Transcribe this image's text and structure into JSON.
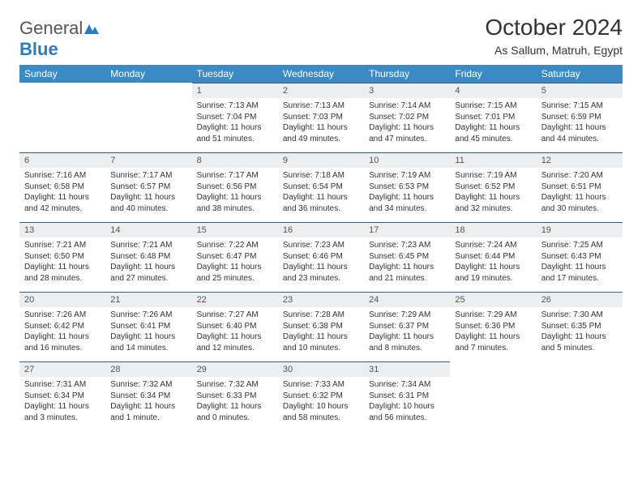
{
  "logo": {
    "part1": "General",
    "part2": "Blue"
  },
  "title": "October 2024",
  "location": "As Sallum, Matruh, Egypt",
  "dayHeaders": [
    "Sunday",
    "Monday",
    "Tuesday",
    "Wednesday",
    "Thursday",
    "Friday",
    "Saturday"
  ],
  "colors": {
    "headerBg": "#3b8ac4",
    "daynumBg": "#eceef0",
    "rule": "#3b5a78"
  },
  "weeks": [
    [
      null,
      null,
      {
        "n": "1",
        "sr": "7:13 AM",
        "ss": "7:04 PM",
        "dl": "11 hours and 51 minutes."
      },
      {
        "n": "2",
        "sr": "7:13 AM",
        "ss": "7:03 PM",
        "dl": "11 hours and 49 minutes."
      },
      {
        "n": "3",
        "sr": "7:14 AM",
        "ss": "7:02 PM",
        "dl": "11 hours and 47 minutes."
      },
      {
        "n": "4",
        "sr": "7:15 AM",
        "ss": "7:01 PM",
        "dl": "11 hours and 45 minutes."
      },
      {
        "n": "5",
        "sr": "7:15 AM",
        "ss": "6:59 PM",
        "dl": "11 hours and 44 minutes."
      }
    ],
    [
      {
        "n": "6",
        "sr": "7:16 AM",
        "ss": "6:58 PM",
        "dl": "11 hours and 42 minutes."
      },
      {
        "n": "7",
        "sr": "7:17 AM",
        "ss": "6:57 PM",
        "dl": "11 hours and 40 minutes."
      },
      {
        "n": "8",
        "sr": "7:17 AM",
        "ss": "6:56 PM",
        "dl": "11 hours and 38 minutes."
      },
      {
        "n": "9",
        "sr": "7:18 AM",
        "ss": "6:54 PM",
        "dl": "11 hours and 36 minutes."
      },
      {
        "n": "10",
        "sr": "7:19 AM",
        "ss": "6:53 PM",
        "dl": "11 hours and 34 minutes."
      },
      {
        "n": "11",
        "sr": "7:19 AM",
        "ss": "6:52 PM",
        "dl": "11 hours and 32 minutes."
      },
      {
        "n": "12",
        "sr": "7:20 AM",
        "ss": "6:51 PM",
        "dl": "11 hours and 30 minutes."
      }
    ],
    [
      {
        "n": "13",
        "sr": "7:21 AM",
        "ss": "6:50 PM",
        "dl": "11 hours and 28 minutes."
      },
      {
        "n": "14",
        "sr": "7:21 AM",
        "ss": "6:48 PM",
        "dl": "11 hours and 27 minutes."
      },
      {
        "n": "15",
        "sr": "7:22 AM",
        "ss": "6:47 PM",
        "dl": "11 hours and 25 minutes."
      },
      {
        "n": "16",
        "sr": "7:23 AM",
        "ss": "6:46 PM",
        "dl": "11 hours and 23 minutes."
      },
      {
        "n": "17",
        "sr": "7:23 AM",
        "ss": "6:45 PM",
        "dl": "11 hours and 21 minutes."
      },
      {
        "n": "18",
        "sr": "7:24 AM",
        "ss": "6:44 PM",
        "dl": "11 hours and 19 minutes."
      },
      {
        "n": "19",
        "sr": "7:25 AM",
        "ss": "6:43 PM",
        "dl": "11 hours and 17 minutes."
      }
    ],
    [
      {
        "n": "20",
        "sr": "7:26 AM",
        "ss": "6:42 PM",
        "dl": "11 hours and 16 minutes."
      },
      {
        "n": "21",
        "sr": "7:26 AM",
        "ss": "6:41 PM",
        "dl": "11 hours and 14 minutes."
      },
      {
        "n": "22",
        "sr": "7:27 AM",
        "ss": "6:40 PM",
        "dl": "11 hours and 12 minutes."
      },
      {
        "n": "23",
        "sr": "7:28 AM",
        "ss": "6:38 PM",
        "dl": "11 hours and 10 minutes."
      },
      {
        "n": "24",
        "sr": "7:29 AM",
        "ss": "6:37 PM",
        "dl": "11 hours and 8 minutes."
      },
      {
        "n": "25",
        "sr": "7:29 AM",
        "ss": "6:36 PM",
        "dl": "11 hours and 7 minutes."
      },
      {
        "n": "26",
        "sr": "7:30 AM",
        "ss": "6:35 PM",
        "dl": "11 hours and 5 minutes."
      }
    ],
    [
      {
        "n": "27",
        "sr": "7:31 AM",
        "ss": "6:34 PM",
        "dl": "11 hours and 3 minutes."
      },
      {
        "n": "28",
        "sr": "7:32 AM",
        "ss": "6:34 PM",
        "dl": "11 hours and 1 minute."
      },
      {
        "n": "29",
        "sr": "7:32 AM",
        "ss": "6:33 PM",
        "dl": "11 hours and 0 minutes."
      },
      {
        "n": "30",
        "sr": "7:33 AM",
        "ss": "6:32 PM",
        "dl": "10 hours and 58 minutes."
      },
      {
        "n": "31",
        "sr": "7:34 AM",
        "ss": "6:31 PM",
        "dl": "10 hours and 56 minutes."
      },
      null,
      null
    ]
  ],
  "labels": {
    "sunrise": "Sunrise:",
    "sunset": "Sunset:",
    "daylight": "Daylight:"
  }
}
